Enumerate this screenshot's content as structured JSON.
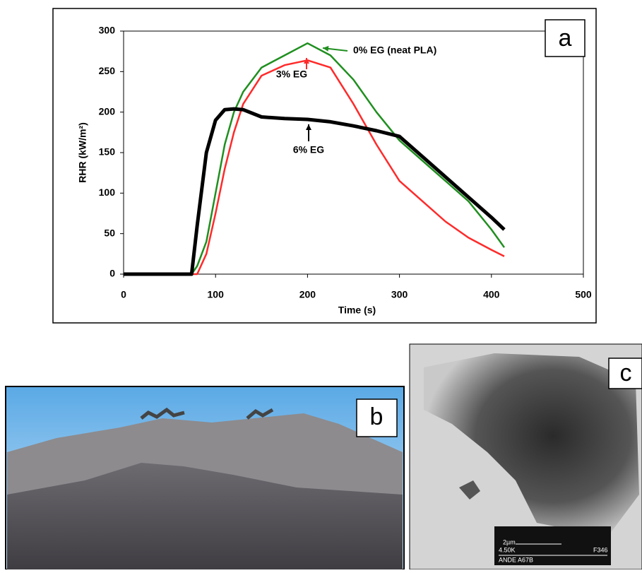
{
  "chart_data": {
    "type": "line",
    "xlabel": "Time (s)",
    "ylabel": "RHR (kW/m²)",
    "x": [
      0,
      50,
      74,
      80,
      90,
      100,
      110,
      120,
      130,
      150,
      175,
      200,
      225,
      250,
      275,
      300,
      325,
      350,
      375,
      400,
      414
    ],
    "series": [
      {
        "name": "0% EG (neat PLA)",
        "color": "#1f8f1f",
        "values": [
          0,
          0,
          0,
          10,
          40,
          100,
          160,
          200,
          225,
          255,
          270,
          285,
          270,
          240,
          200,
          165,
          140,
          115,
          90,
          55,
          33
        ]
      },
      {
        "name": "3% EG",
        "color": "#ff2a2a",
        "values": [
          0,
          0,
          0,
          0,
          25,
          75,
          130,
          175,
          210,
          245,
          258,
          264,
          255,
          210,
          160,
          115,
          90,
          65,
          45,
          30,
          22
        ]
      },
      {
        "name": "6% EG",
        "color": "#000000",
        "values": [
          0,
          0,
          0,
          60,
          150,
          190,
          203,
          204,
          203,
          194,
          192,
          191,
          188,
          183,
          177,
          170,
          145,
          120,
          95,
          70,
          55
        ]
      }
    ],
    "xlim": [
      0,
      500
    ],
    "xticks": [
      0,
      100,
      200,
      300,
      400,
      500
    ],
    "ylim": [
      0,
      300
    ],
    "yticks": [
      0,
      50,
      100,
      150,
      200,
      250,
      300
    ],
    "grid": false
  },
  "panel_labels": [
    "a",
    "b",
    "c"
  ],
  "scale_bar": {
    "length": "2µm",
    "magnification": "4.50K",
    "code": "F346",
    "label": "ANDE A67B"
  }
}
